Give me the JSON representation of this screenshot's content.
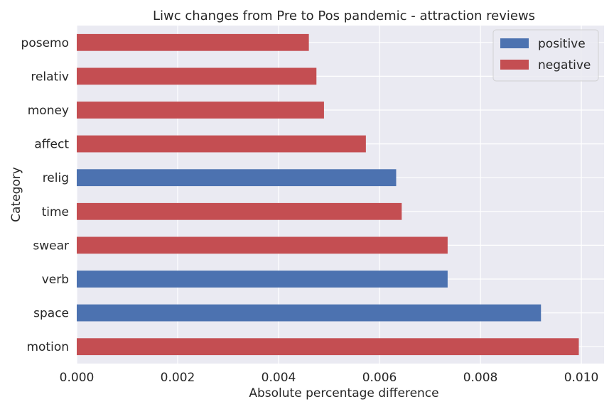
{
  "chart_data": {
    "type": "bar",
    "orientation": "horizontal",
    "title": "Liwc changes from Pre to Pos pandemic - attraction reviews",
    "xlabel": "Absolute percentage difference",
    "ylabel": "Category",
    "categories": [
      "motion",
      "space",
      "verb",
      "swear",
      "time",
      "relig",
      "affect",
      "money",
      "relativ",
      "posemo"
    ],
    "values": [
      0.00995,
      0.0092,
      0.00735,
      0.00735,
      0.00644,
      0.00633,
      0.00573,
      0.0049,
      0.00475,
      0.0046
    ],
    "direction": [
      "negative",
      "positive",
      "positive",
      "negative",
      "negative",
      "positive",
      "negative",
      "negative",
      "negative",
      "negative"
    ],
    "xlim": [
      0,
      0.01045
    ],
    "xticks": [
      "0.000",
      "0.002",
      "0.004",
      "0.006",
      "0.008",
      "0.010"
    ],
    "grid": true,
    "legend": {
      "position": "top-right",
      "entries": [
        {
          "label": "positive",
          "color": "#4c72b0"
        },
        {
          "label": "negative",
          "color": "#c44e52"
        }
      ]
    },
    "colors": {
      "positive": "#4c72b0",
      "negative": "#c44e52",
      "background": "#eaeaf2",
      "grid": "#ffffff"
    }
  }
}
